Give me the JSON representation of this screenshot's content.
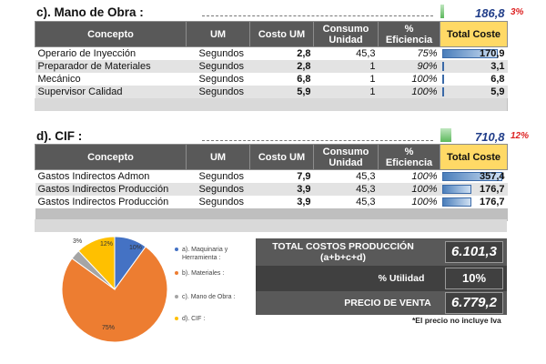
{
  "mano_obra": {
    "title": "c). Mano de Obra :",
    "total": "186,8",
    "pct": "3%",
    "headers": [
      "Concepto",
      "UM",
      "Costo UM",
      "Consumo Unidad",
      "% Eficiencia",
      "Total Coste"
    ],
    "rows": [
      {
        "concepto": "Operario de Inyección",
        "um": "Segundos",
        "costo": "2,8",
        "consumo": "45,3",
        "eficiencia": "75%",
        "total": "170,9",
        "bar": 0.93
      },
      {
        "concepto": "Preparador de Materiales",
        "um": "Segundos",
        "costo": "2,8",
        "consumo": "1",
        "eficiencia": "90%",
        "total": "3,1",
        "bar": 0.02
      },
      {
        "concepto": "Mecánico",
        "um": "Segundos",
        "costo": "6,8",
        "consumo": "1",
        "eficiencia": "100%",
        "total": "6,8",
        "bar": 0.04
      },
      {
        "concepto": "Supervisor Calidad",
        "um": "Segundos",
        "costo": "5,9",
        "consumo": "1",
        "eficiencia": "100%",
        "total": "5,9",
        "bar": 0.03
      }
    ]
  },
  "cif": {
    "title": "d). CIF :",
    "total": "710,8",
    "pct": "12%",
    "headers": [
      "Concepto",
      "UM",
      "Costo UM",
      "Consumo Unidad",
      "% Eficiencia",
      "Total Coste"
    ],
    "rows": [
      {
        "concepto": "Gastos Indirectos Admon",
        "um": "Segundos",
        "costo": "7,9",
        "consumo": "45,3",
        "eficiencia": "100%",
        "total": "357,4",
        "bar": 1.0
      },
      {
        "concepto": "Gastos Indirectos Producción",
        "um": "Segundos",
        "costo": "3,9",
        "consumo": "45,3",
        "eficiencia": "100%",
        "total": "176,7",
        "bar": 0.49
      },
      {
        "concepto": "Gastos Indirectos Producción",
        "um": "Segundos",
        "costo": "3,9",
        "consumo": "45,3",
        "eficiencia": "100%",
        "total": "176,7",
        "bar": 0.49
      }
    ]
  },
  "summary": {
    "total_label": "TOTAL COSTOS PRODUCCIÓN",
    "total_sub": "(a+b+c+d)",
    "total_value": "6.101,3",
    "utilidad_label": "% Utilidad",
    "utilidad_value": "10%",
    "precio_label": "PRECIO DE VENTA",
    "precio_value": "6.779,2",
    "note": "*El precio no incluye Iva"
  },
  "chart_data": {
    "type": "pie",
    "categories": [
      "a). Maquinaria y Herramienta :",
      "b). Materiales :",
      "c). Mano de Obra :",
      "d). CIF :"
    ],
    "values": [
      10,
      75,
      3,
      12
    ],
    "labels": [
      "10%",
      "75%",
      "3%",
      "12%"
    ],
    "colors": [
      "#4472c4",
      "#ed7d31",
      "#a5a5a5",
      "#ffc000"
    ],
    "legend_position": "right"
  }
}
